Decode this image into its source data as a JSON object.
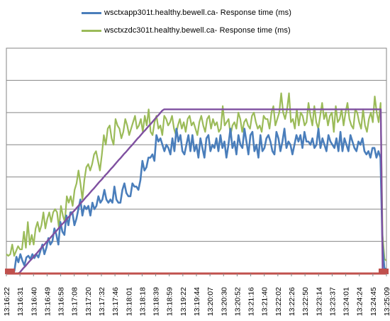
{
  "chart_data": {
    "type": "line",
    "title": "",
    "xlabel": "",
    "ylabel": "",
    "grid": true,
    "legend_position": "top",
    "y_tick_labels_visible": false,
    "colors": {
      "series1": "#4a7ebb",
      "series2": "#9bbb59",
      "ramp": "#7f50a0",
      "baseline": "#c0504d",
      "grid": "#868686"
    },
    "x_tick_labels": [
      "13:16:22",
      "13:16:31",
      "13:16:40",
      "13:16:49",
      "13:16:58",
      "13:17:08",
      "13:17:20",
      "13:17:32",
      "13:17:46",
      "13:18:01",
      "13:18:18",
      "13:18:39",
      "13:18:59",
      "13:19:22",
      "13:19:44",
      "13:20:07",
      "13:20:30",
      "13:20:52",
      "13:21:16",
      "13:21:40",
      "13:22:02",
      "13:22:26",
      "13:22:50",
      "13:23:14",
      "13:23:37",
      "13:24:01",
      "13:24:24",
      "13:24:45",
      "13:25:09"
    ],
    "ylim": [
      0,
      7
    ],
    "series": [
      {
        "name": "wsctxapp301t.healthy.bewell.ca-  Response time (ms)",
        "values": [
          0.1,
          0.08,
          0.08,
          0.09,
          0.08,
          0.52,
          0.35,
          0.6,
          0.4,
          0.25,
          0.5,
          0.55,
          0.45,
          0.6,
          0.48,
          0.6,
          0.5,
          0.7,
          0.9,
          0.6,
          0.8,
          1.1,
          0.9,
          1.0,
          1.4,
          1.2,
          0.9,
          1.6,
          1.3,
          1.2,
          1.8,
          1.5,
          1.9,
          1.9,
          1.5,
          1.7,
          2.0,
          2.3,
          1.8,
          2.1,
          2.0,
          2.1,
          1.8,
          2.2,
          2.0,
          2.1,
          2.4,
          2.2,
          2.3,
          2.6,
          2.3,
          2.2,
          2.3,
          2.2,
          2.7,
          2.3,
          2.2,
          2.2,
          2.6,
          2.8,
          2.5,
          2.4,
          2.4,
          2.8,
          2.7,
          2.7,
          2.6,
          2.9,
          3.5,
          3.2,
          3.3,
          3.6,
          3.6,
          3.7,
          3.5,
          4.3,
          4.1,
          4.2,
          4.0,
          3.8,
          4.0,
          3.9,
          3.7,
          4.2,
          3.8,
          4.5,
          4.1,
          4.3,
          3.8,
          3.7,
          4.0,
          4.3,
          3.8,
          4.3,
          3.8,
          4.0,
          3.6,
          4.2,
          3.9,
          3.6,
          4.2,
          4.3,
          3.8,
          4.0,
          3.9,
          4.2,
          3.8,
          4.3,
          3.9,
          4.1,
          3.6,
          4.0,
          4.5,
          3.9,
          4.1,
          3.7,
          4.3,
          4.0,
          3.9,
          4.5,
          4.1,
          3.7,
          4.3,
          4.4,
          3.8,
          4.0,
          3.6,
          4.3,
          3.8,
          3.9,
          4.2,
          4.3,
          4.1,
          3.8,
          3.7,
          4.4,
          4.2,
          3.8,
          4.1,
          4.5,
          3.9,
          4.1,
          4.0,
          3.7,
          4.0,
          4.3,
          4.1,
          4.3,
          3.9,
          4.4,
          4.1,
          4.1,
          4.0,
          4.2,
          3.9,
          4.0,
          4.5,
          3.9,
          4.2,
          4.0,
          3.8,
          4.3,
          4.1,
          4.0,
          3.9,
          4.2,
          3.8,
          4.4,
          3.8,
          4.2,
          4.0,
          3.8,
          4.3,
          4.1,
          3.9,
          3.8,
          4.1,
          4.0,
          4.2,
          3.8,
          3.7,
          3.8,
          3.6,
          3.9,
          3.9,
          3.6,
          3.8,
          3.6,
          0.9,
          0.15,
          0.15
        ]
      },
      {
        "name": "wsctxzdc301t.healthy.bewell.ca-  Response time (ms)",
        "values": [
          0.6,
          0.55,
          0.6,
          0.9,
          0.55,
          0.7,
          0.85,
          0.75,
          0.75,
          1.3,
          0.8,
          1.6,
          0.9,
          1.2,
          0.9,
          1.4,
          1.6,
          1.3,
          1.5,
          1.9,
          1.4,
          1.7,
          1.9,
          1.6,
          1.9,
          2.0,
          1.9,
          1.4,
          2.1,
          1.8,
          1.6,
          2.4,
          2.2,
          2.4,
          2.1,
          2.6,
          2.8,
          3.2,
          2.8,
          2.3,
          2.9,
          3.3,
          3.4,
          3.2,
          3.4,
          3.7,
          3.8,
          3.5,
          3.2,
          3.7,
          4.3,
          4.0,
          4.5,
          4.6,
          4.2,
          4.0,
          4.8,
          4.6,
          4.5,
          4.2,
          4.4,
          4.8,
          4.6,
          4.3,
          4.5,
          4.7,
          4.9,
          4.5,
          4.6,
          4.8,
          4.4,
          4.9,
          4.6,
          5.1,
          4.4,
          4.3,
          4.7,
          4.9,
          4.5,
          4.6,
          4.3,
          4.9,
          4.8,
          4.6,
          4.7,
          4.9,
          4.5,
          4.3,
          4.6,
          4.8,
          4.5,
          4.7,
          4.4,
          4.8,
          4.9,
          4.6,
          4.7,
          4.5,
          4.3,
          4.7,
          4.9,
          4.6,
          4.4,
          4.8,
          4.9,
          4.5,
          4.8,
          4.6,
          4.7,
          4.4,
          4.5,
          5.2,
          4.6,
          4.7,
          4.8,
          4.3,
          4.6,
          4.7,
          4.5,
          5.0,
          4.8,
          4.4,
          4.7,
          4.8,
          4.6,
          4.5,
          4.9,
          5.0,
          4.7,
          4.5,
          4.6,
          4.4,
          4.9,
          4.8,
          4.8,
          4.5,
          5.0,
          5.2,
          4.6,
          4.8,
          5.0,
          5.6,
          5.0,
          4.8,
          5.1,
          5.6,
          4.7,
          4.8,
          4.5,
          5.1,
          4.6,
          5.0,
          4.9,
          4.6,
          4.7,
          5.3,
          4.9,
          4.6,
          5.2,
          4.7,
          4.5,
          4.9,
          5.3,
          4.8,
          5.0,
          4.6,
          4.9,
          5.0,
          4.4,
          5.2,
          4.7,
          4.8,
          5.1,
          4.6,
          5.0,
          5.3,
          4.8,
          4.6,
          4.5,
          5.1,
          5.0,
          4.7,
          4.5,
          5.1,
          4.6,
          4.4,
          4.8,
          5.0,
          4.7,
          5.5,
          5.0,
          4.7,
          5.3,
          1.2,
          0.45,
          0.4
        ]
      },
      {
        "name": "",
        "values": [
          0,
          0,
          0,
          0,
          0,
          0,
          0,
          0.03,
          0.1,
          0.17,
          0.23,
          0.3,
          0.37,
          0.43,
          0.5,
          0.57,
          0.63,
          0.7,
          0.77,
          0.84,
          0.9,
          0.97,
          1.04,
          1.1,
          1.17,
          1.24,
          1.3,
          1.37,
          1.44,
          1.51,
          1.57,
          1.64,
          1.71,
          1.77,
          1.84,
          1.91,
          1.97,
          2.04,
          2.11,
          2.18,
          2.24,
          2.31,
          2.38,
          2.44,
          2.51,
          2.58,
          2.64,
          2.71,
          2.78,
          2.85,
          2.91,
          2.98,
          3.05,
          3.11,
          3.18,
          3.25,
          3.31,
          3.38,
          3.45,
          3.52,
          3.58,
          3.65,
          3.72,
          3.78,
          3.85,
          3.92,
          3.98,
          4.05,
          4.12,
          4.19,
          4.25,
          4.32,
          4.39,
          4.45,
          4.52,
          4.59,
          4.65,
          4.72,
          4.79,
          4.86,
          4.92,
          4.99,
          5.06,
          5.1,
          5.1,
          5.1,
          5.1,
          5.1,
          5.1,
          5.1,
          5.1,
          5.1,
          5.1,
          5.1,
          5.1,
          5.1,
          5.1,
          5.1,
          5.1,
          5.1,
          5.1,
          5.1,
          5.1,
          5.1,
          5.1,
          5.1,
          5.1,
          5.1,
          5.1,
          5.1,
          5.1,
          5.1,
          5.1,
          5.1,
          5.1,
          5.1,
          5.1,
          5.1,
          5.1,
          5.1,
          5.1,
          5.1,
          5.1,
          5.1,
          5.1,
          5.1,
          5.1,
          5.1,
          5.1,
          5.1,
          5.1,
          5.1,
          5.1,
          5.1,
          5.1,
          5.1,
          5.1,
          5.1,
          5.1,
          5.1,
          5.1,
          5.1,
          5.1,
          5.1,
          5.1,
          5.1,
          5.1,
          5.1,
          5.1,
          5.1,
          5.1,
          5.1,
          5.1,
          5.1,
          5.1,
          5.1,
          5.1,
          5.1,
          5.1,
          5.1,
          5.1,
          5.1,
          5.1,
          5.1,
          5.1,
          5.1,
          5.1,
          5.1,
          5.1,
          5.1,
          5.1,
          5.1,
          5.1,
          5.1,
          5.1,
          5.1,
          5.1,
          5.1,
          5.1,
          5.1,
          5.1,
          5.1,
          5.1,
          5.1,
          5.1,
          5.1,
          5.1,
          5.1,
          5.1,
          5.1,
          5.1,
          5.1,
          5.1,
          5.1,
          5.1,
          5.1,
          5.1,
          5.1,
          0.05,
          0,
          0
        ]
      },
      {
        "name": "",
        "values": [
          0,
          0,
          0,
          0,
          0,
          0,
          0,
          0,
          0,
          0,
          0,
          0,
          0,
          0,
          0,
          0,
          0,
          0,
          0,
          0,
          0,
          0,
          0,
          0,
          0,
          0,
          0,
          0,
          0,
          0,
          0,
          0,
          0,
          0,
          0,
          0,
          0,
          0,
          0,
          0,
          0,
          0,
          0,
          0,
          0,
          0,
          0,
          0,
          0,
          0,
          0,
          0,
          0,
          0,
          0,
          0,
          0,
          0,
          0,
          0,
          0,
          0,
          0,
          0,
          0,
          0,
          0,
          0,
          0,
          0,
          0,
          0,
          0,
          0,
          0,
          0,
          0,
          0,
          0,
          0,
          0,
          0,
          0,
          0,
          0,
          0,
          0,
          0,
          0,
          0,
          0,
          0,
          0,
          0,
          0,
          0,
          0,
          0,
          0,
          0,
          0,
          0,
          0,
          0,
          0,
          0,
          0,
          0,
          0,
          0,
          0,
          0,
          0,
          0,
          0,
          0,
          0,
          0,
          0,
          0,
          0,
          0,
          0,
          0,
          0,
          0,
          0,
          0,
          0,
          0,
          0,
          0,
          0,
          0,
          0,
          0,
          0,
          0,
          0,
          0,
          0,
          0,
          0,
          0,
          0,
          0,
          0,
          0,
          0,
          0,
          0,
          0,
          0,
          0,
          0,
          0,
          0,
          0,
          0,
          0,
          0,
          0,
          0,
          0,
          0,
          0,
          0,
          0,
          0,
          0,
          0,
          0,
          0,
          0,
          0,
          0,
          0,
          0,
          0,
          0,
          0,
          0,
          0,
          0,
          0,
          0,
          0,
          0,
          0,
          0,
          0,
          0,
          0,
          0,
          0,
          0,
          0,
          0,
          0,
          0,
          0,
          0,
          0
        ]
      }
    ]
  }
}
